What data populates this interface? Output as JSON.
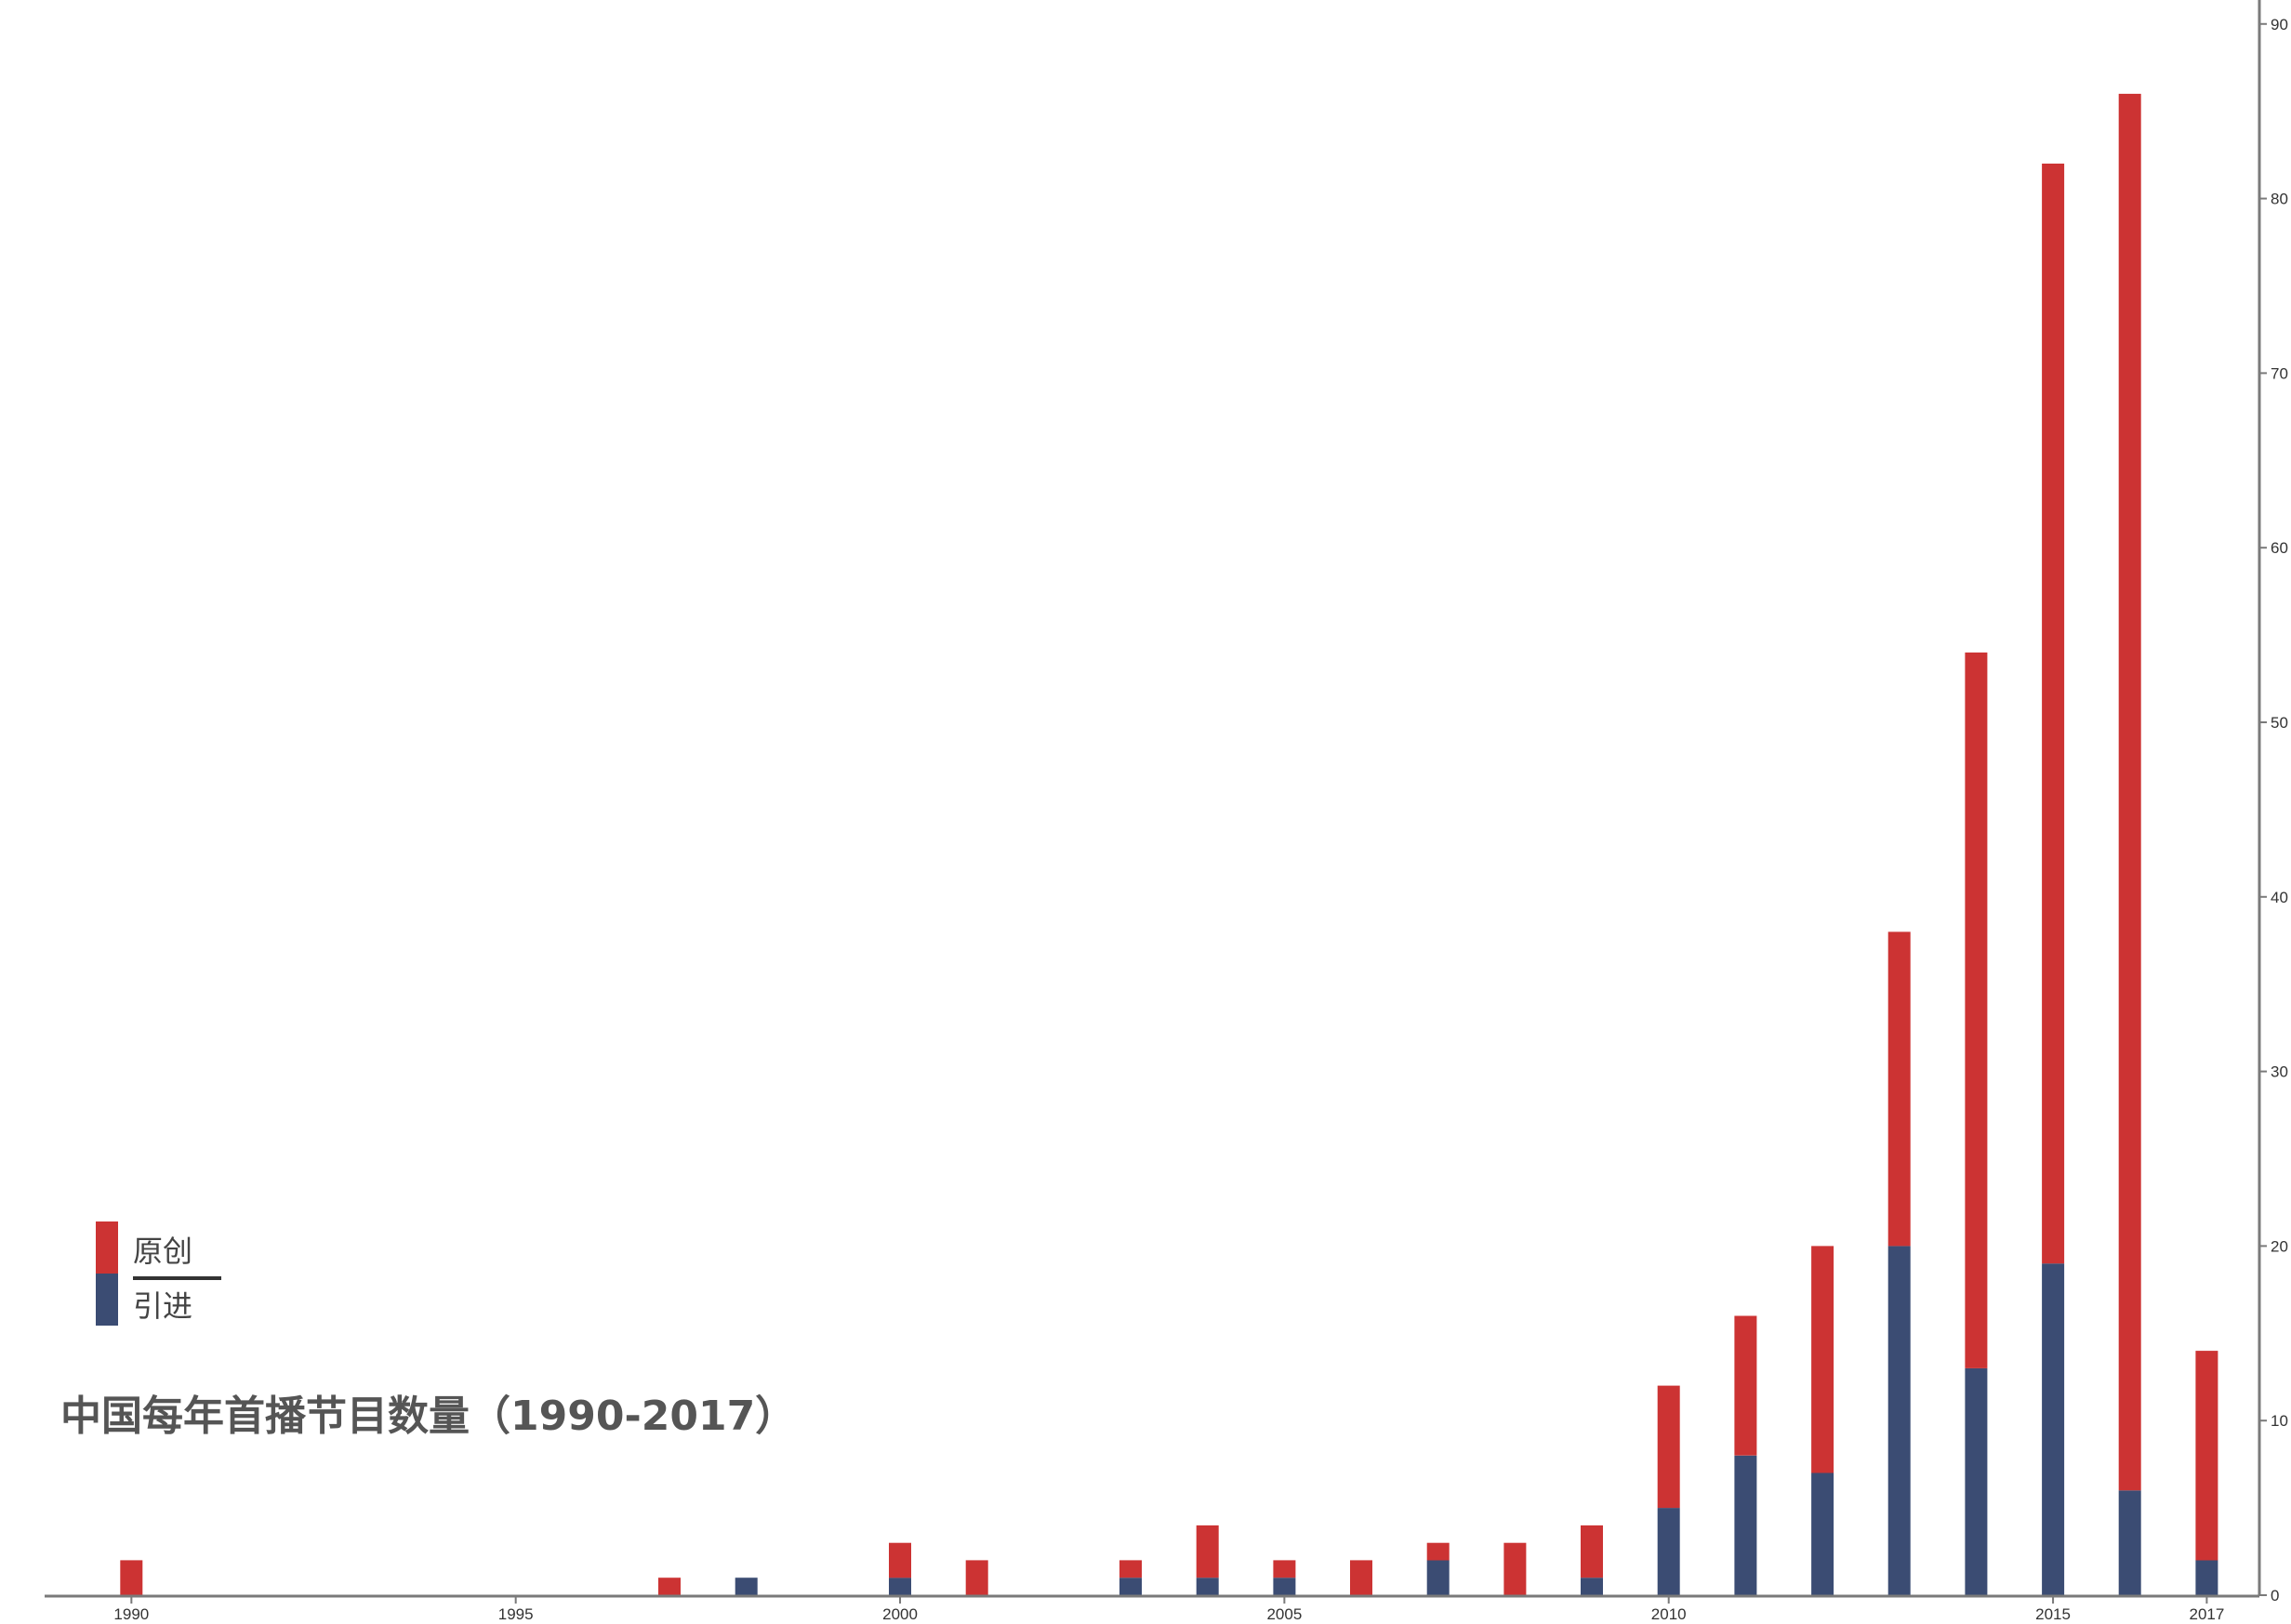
{
  "chart_data": {
    "type": "bar",
    "stacked": true,
    "title": "中国每年首播节目数量（1990-2017）",
    "x_ticks": [
      "1990",
      "1995",
      "2000",
      "2005",
      "2010",
      "2015",
      "2017"
    ],
    "y_ticks": [
      "0",
      "10",
      "20",
      "30",
      "40",
      "50",
      "60",
      "70",
      "80",
      "90"
    ],
    "ylim": [
      0,
      91
    ],
    "xlim": [
      1989.5,
      2017.6
    ],
    "y_axis_position": "right",
    "grid": false,
    "legend_position": "lower-left",
    "years": [
      1990,
      1997,
      1998,
      2000,
      2001,
      2003,
      2004,
      2005,
      2006,
      2007,
      2008,
      2009,
      2010,
      2011,
      2012,
      2013,
      2014,
      2015,
      2016,
      2017
    ],
    "series": [
      {
        "name": "引进",
        "color": "#3b4c73",
        "values": [
          0,
          0,
          1,
          1,
          0,
          1,
          1,
          1,
          0,
          2,
          0,
          1,
          5,
          8,
          7,
          20,
          13,
          19,
          6,
          2
        ]
      },
      {
        "name": "原创",
        "color": "#cc3333",
        "values": [
          2,
          1,
          0,
          2,
          2,
          1,
          3,
          1,
          2,
          1,
          3,
          3,
          7,
          8,
          13,
          18,
          41,
          63,
          80,
          12
        ]
      }
    ],
    "axis_color": "#7a7a7a"
  }
}
